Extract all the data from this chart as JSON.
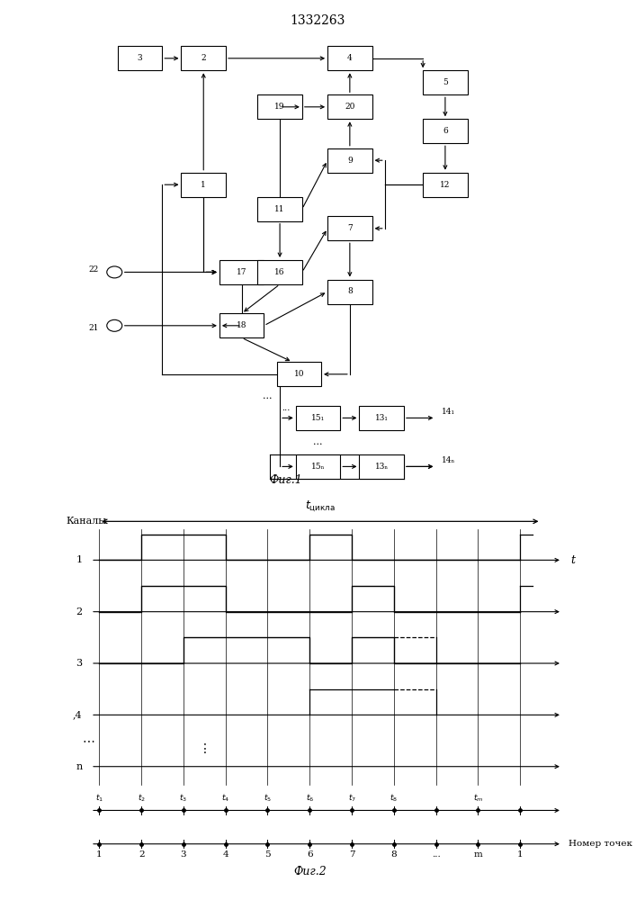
{
  "title": "1332263",
  "fig1_label": "Фиг.1",
  "fig2_label": "Фиг.2",
  "bg_color": "#ffffff",
  "channels_label": "Каналы",
  "nomer_tochek": "Номер точек"
}
